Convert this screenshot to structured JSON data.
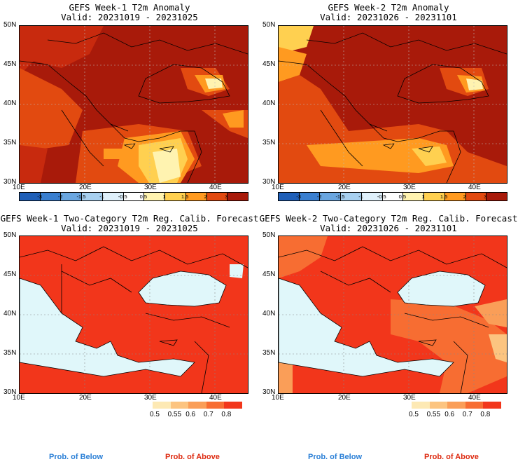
{
  "panels": [
    {
      "title": "GEFS Week-1 T2m Anomaly",
      "valid": "Valid: 20231019 - 20231025"
    },
    {
      "title": "GEFS Week-2 T2m Anomaly",
      "valid": "Valid: 20231026 - 20231101"
    },
    {
      "title": "GEFS Week-1 Two-Category T2m Reg. Calib. Forecast",
      "valid": "Valid: 20231019 - 20231025"
    },
    {
      "title": "GEFS Week-2 Two-Category T2m Reg. Calib. Forecast",
      "valid": "Valid: 20231026 - 20231101"
    }
  ],
  "lat_ticks": [
    "50N",
    "45N",
    "40N",
    "35N",
    "30N"
  ],
  "lon_ticks": [
    "10E",
    "20E",
    "30E",
    "40E"
  ],
  "anomaly_colorbar": {
    "labels": [
      "-3",
      "-2",
      "-1.5",
      "-1",
      "-0.5",
      "0.5",
      "1",
      "1.5",
      "2",
      "3"
    ],
    "colors": [
      "#1f5fb8",
      "#3a7fd0",
      "#6aa6e0",
      "#a8d0f0",
      "#dff0fb",
      "#ffffff",
      "#fff3b0",
      "#ffd050",
      "#ff9a20",
      "#e24a10",
      "#a81a0a"
    ]
  },
  "prob_colorbar": {
    "labels": [
      "0.5",
      "0.55",
      "0.6",
      "0.7",
      "0.8"
    ],
    "colors": [
      "#fde9b4",
      "#fcc480",
      "#fa9e58",
      "#f76d32",
      "#f2361b"
    ]
  },
  "legend": {
    "below": "Prob. of Below",
    "above": "Prob. of Above",
    "below_color": "#2a7fd6",
    "above_color": "#dd2a10"
  }
}
